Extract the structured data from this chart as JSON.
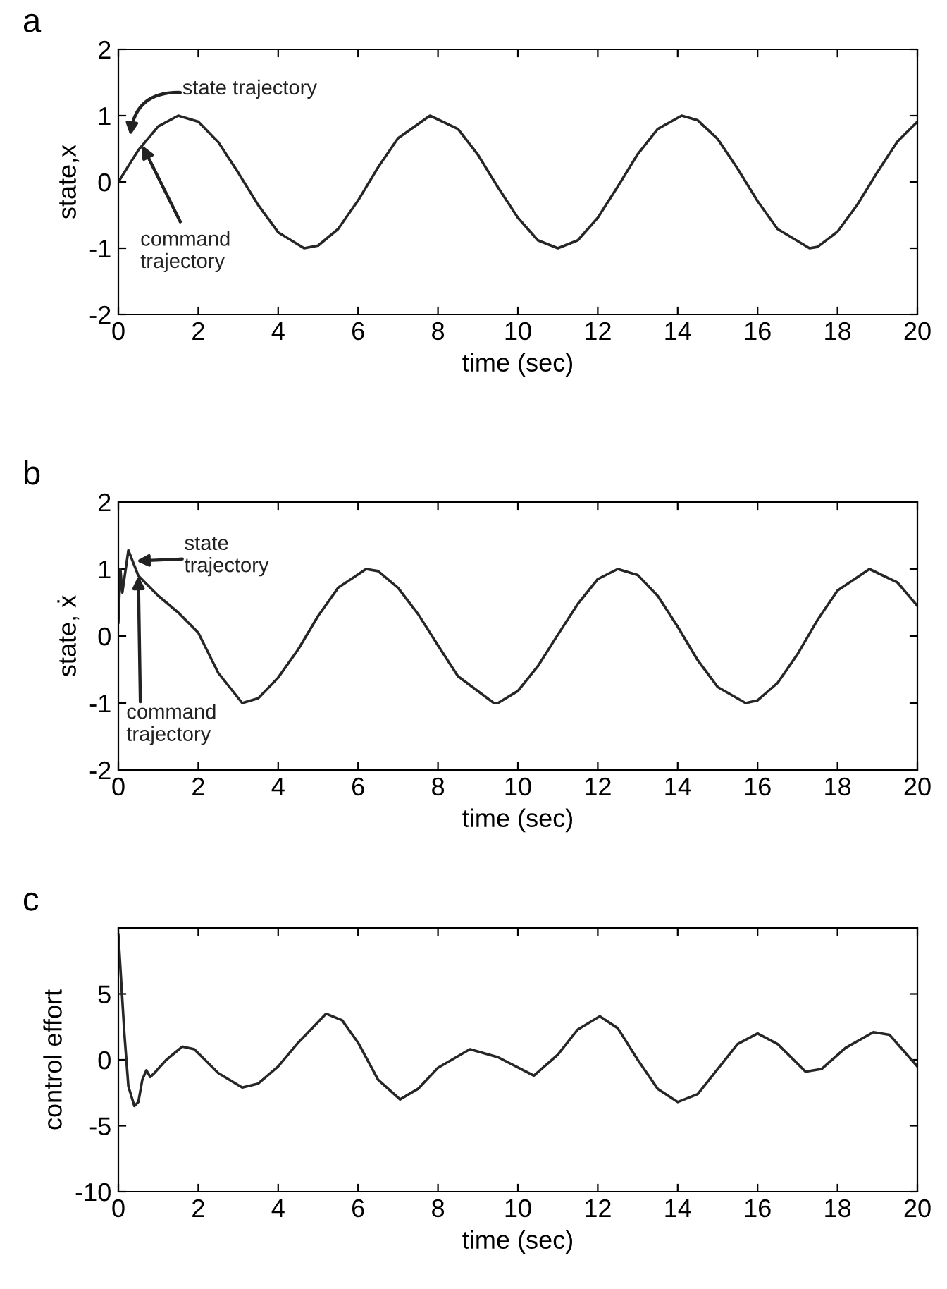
{
  "chart_data": [
    {
      "type": "line",
      "title": "a",
      "xlabel": "time (sec)",
      "ylabel": "state,x",
      "xlim": [
        0,
        20
      ],
      "ylim": [
        -2,
        2
      ],
      "xticks": [
        0,
        2,
        4,
        6,
        8,
        10,
        12,
        14,
        16,
        18,
        20
      ],
      "yticks": [
        -2,
        -1,
        0,
        1,
        2
      ],
      "grid": false,
      "legend": false,
      "x": [
        0,
        0.5,
        1,
        1.5,
        2,
        2.5,
        3,
        3.5,
        4,
        4.65,
        5,
        5.5,
        6,
        6.5,
        7,
        7.8,
        8.5,
        9,
        9.5,
        10,
        10.5,
        11,
        11.5,
        12,
        12.5,
        13,
        13.5,
        14.1,
        14.5,
        15,
        15.5,
        16,
        16.5,
        17.3,
        17.5,
        18,
        18.5,
        19,
        19.5,
        20
      ],
      "series": [
        {
          "color": "#262626",
          "values": [
            0,
            0.48,
            0.84,
            1.0,
            0.91,
            0.6,
            0.14,
            -0.35,
            -0.76,
            -1.0,
            -0.96,
            -0.71,
            -0.28,
            0.22,
            0.66,
            1.0,
            0.8,
            0.41,
            -0.08,
            -0.54,
            -0.88,
            -1.0,
            -0.88,
            -0.54,
            -0.07,
            0.42,
            0.8,
            1.0,
            0.93,
            0.65,
            0.2,
            -0.29,
            -0.71,
            -1.0,
            -0.98,
            -0.75,
            -0.34,
            0.15,
            0.61,
            0.91
          ]
        }
      ],
      "annotations": [
        "state trajectory",
        {
          "text": "command\ntrajectory",
          "x": 0.6,
          "y": 0.55
        }
      ]
    },
    {
      "type": "line",
      "title": "b",
      "xlabel": "time (sec)",
      "ylabel": "state, ẋ",
      "xlim": [
        0,
        20
      ],
      "ylim": [
        -2,
        2
      ],
      "xticks": [
        0,
        2,
        4,
        6,
        8,
        10,
        12,
        14,
        16,
        18,
        20
      ],
      "yticks": [
        -2,
        -1,
        0,
        1,
        2
      ],
      "grid": false,
      "legend": false,
      "x": [
        0,
        0.05,
        0.1,
        0.25,
        0.5,
        1,
        1.5,
        2,
        2.5,
        3.1,
        3.5,
        4,
        4.5,
        5,
        5.5,
        6.2,
        6.5,
        7,
        7.5,
        8,
        8.5,
        9.4,
        9.5,
        10,
        10.5,
        11,
        11.5,
        12,
        12.5,
        13,
        13.5,
        14,
        14.5,
        15,
        15.7,
        16,
        16.5,
        17,
        17.5,
        18,
        18.8,
        19.5,
        20
      ],
      "series": [
        {
          "color": "#262626",
          "values": [
            0.2,
            1.0,
            0.65,
            1.28,
            0.9,
            0.6,
            0.35,
            0.05,
            -0.55,
            -1.0,
            -0.93,
            -0.62,
            -0.2,
            0.3,
            0.72,
            1.0,
            0.97,
            0.72,
            0.33,
            -0.14,
            -0.6,
            -1.0,
            -1.0,
            -0.82,
            -0.45,
            0.02,
            0.48,
            0.85,
            1.0,
            0.91,
            0.6,
            0.14,
            -0.36,
            -0.76,
            -1.0,
            -0.96,
            -0.7,
            -0.27,
            0.24,
            0.68,
            1.0,
            0.8,
            0.45
          ]
        }
      ],
      "annotations": [
        "state\ntrajectory",
        {
          "text": "command\ntrajectory",
          "x": 0.5,
          "y": 0.9
        }
      ]
    },
    {
      "type": "line",
      "title": "c",
      "xlabel": "time (sec)",
      "ylabel": "control effort",
      "xlim": [
        0,
        20
      ],
      "ylim": [
        -10,
        10
      ],
      "xticks": [
        0,
        2,
        4,
        6,
        8,
        10,
        12,
        14,
        16,
        18,
        20
      ],
      "yticks": [
        -10,
        -5,
        0,
        5,
        {
          "value": 10,
          "label": null
        }
      ],
      "grid": false,
      "legend": false,
      "x": [
        0,
        0.05,
        0.15,
        0.25,
        0.4,
        0.5,
        0.6,
        0.7,
        0.8,
        0.9,
        1.2,
        1.6,
        1.9,
        2.5,
        3.1,
        3.5,
        4,
        4.5,
        5.2,
        5.6,
        6,
        6.5,
        7.05,
        7.5,
        8,
        8.8,
        9.5,
        10.4,
        11,
        11.5,
        12.05,
        12.5,
        13,
        13.5,
        14,
        14.5,
        15,
        15.5,
        16,
        16.5,
        17.2,
        17.6,
        18.2,
        18.9,
        19.3,
        20
      ],
      "series": [
        {
          "color": "#262626",
          "values": [
            9.5,
            7,
            2,
            -2,
            -3.5,
            -3.2,
            -1.5,
            -0.8,
            -1.3,
            -1,
            0,
            1.0,
            0.8,
            -1.0,
            -2.1,
            -1.8,
            -0.5,
            1.3,
            3.5,
            3.0,
            1.3,
            -1.5,
            -3.0,
            -2.2,
            -0.6,
            0.8,
            0.2,
            -1.2,
            0.4,
            2.3,
            3.3,
            2.4,
            0,
            -2.2,
            -3.2,
            -2.6,
            -0.7,
            1.2,
            2.0,
            1.2,
            -0.9,
            -0.7,
            0.9,
            2.1,
            1.9,
            -0.5
          ]
        }
      ]
    }
  ]
}
